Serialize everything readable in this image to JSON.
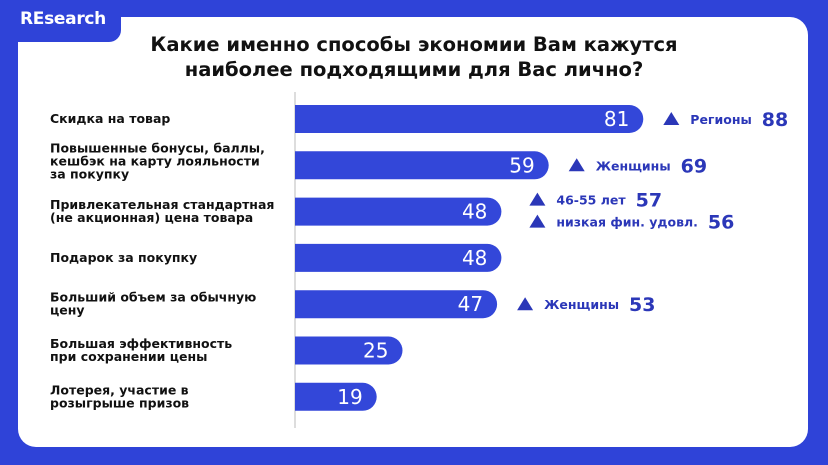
{
  "logo": "REsearch",
  "colors": {
    "background": "#2f43d8",
    "bar": "#3347d9",
    "annotation": "#2b37b8"
  },
  "chart_data": {
    "type": "bar",
    "orientation": "horizontal",
    "title": "Какие именно способы экономии Вам кажутся наиболее подходящими для Вас лично?",
    "title_lines": [
      "Какие именно способы экономии Вам кажутся",
      "наиболее подходящими для Вас лично?"
    ],
    "categories": [
      [
        "Скидка на товар"
      ],
      [
        "Повышенные бонусы, баллы,",
        "кешбэк на карту лояльности",
        "за покупку"
      ],
      [
        "Привлекательная стандартная",
        "(не акционная) цена товара"
      ],
      [
        "Подарок за покупку"
      ],
      [
        "Больший объем за обычную",
        "цену"
      ],
      [
        "Большая эффективность",
        "при сохранении цены"
      ],
      [
        "Лотерея, участие в",
        "розыгрыше призов"
      ]
    ],
    "values": [
      81,
      59,
      48,
      48,
      47,
      25,
      19
    ],
    "annotations": [
      [
        {
          "label": "Регионы",
          "value": 88
        }
      ],
      [
        {
          "label": "Женщины",
          "value": 69
        }
      ],
      [
        {
          "label": "46-55 лет",
          "value": 57
        },
        {
          "label": "низкая фин. удовл.",
          "value": 56
        }
      ],
      [],
      [
        {
          "label": "Женщины",
          "value": 53
        }
      ],
      [],
      []
    ],
    "annotation_icon": "triangle-up-icon",
    "grid": false
  }
}
